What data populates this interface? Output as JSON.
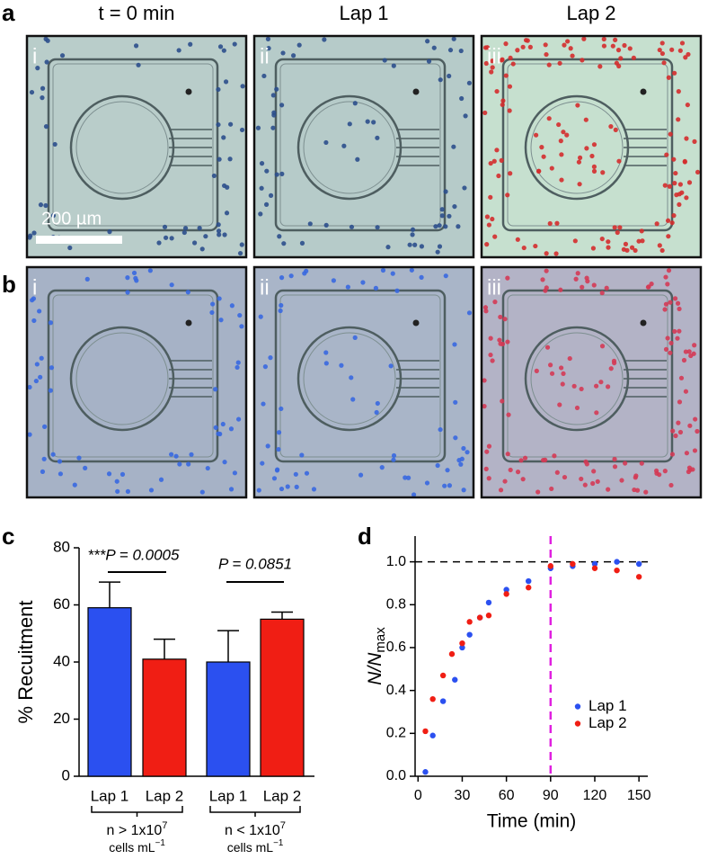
{
  "panel_labels": [
    "a",
    "b",
    "c",
    "d"
  ],
  "columns": [
    "t = 0 min",
    "Lap 1",
    "Lap 2"
  ],
  "rows": [
    [
      "i",
      "ii",
      "iii"
    ],
    [
      "i",
      "ii",
      "iii"
    ]
  ],
  "scale_bar": "200 µm",
  "chart_data": [
    {
      "type": "bar",
      "ylabel": "% Recuitment",
      "categories": [
        "Lap 1",
        "Lap 2",
        "Lap 1",
        "Lap 2"
      ],
      "values": [
        59,
        41,
        40,
        55
      ],
      "errors": [
        9,
        7,
        11,
        2.5
      ],
      "colors": [
        "#2b50f0",
        "#f01e14",
        "#2b50f0",
        "#f01e14"
      ],
      "ylim": [
        0,
        80
      ],
      "yticks": [
        0,
        20,
        40,
        60,
        80
      ],
      "annotations": [
        "***P = 0.0005",
        "P = 0.0851"
      ],
      "groups": [
        {
          "line1": {
            "main": "n > 1x10",
            "sup": "7"
          },
          "line2": {
            "main": "cells mL",
            "sup": "−1"
          }
        },
        {
          "line1": {
            "main": "n < 1x10",
            "sup": "7"
          },
          "line2": {
            "main": "cells mL",
            "sup": "−1"
          }
        }
      ]
    },
    {
      "type": "scatter",
      "xlabel": "Time (min)",
      "ylabel": {
        "main": "N/N",
        "sub": "max"
      },
      "xlim": [
        -2,
        156
      ],
      "xticks": [
        0,
        30,
        60,
        90,
        120,
        150
      ],
      "ylim": [
        0,
        1.12
      ],
      "yticks": [
        {
          "value": 0,
          "label": "0.0"
        },
        0.2,
        0.4,
        0.6,
        0.8,
        {
          "value": 1,
          "label": "1.0"
        }
      ],
      "hline": {
        "value": 1,
        "color": "#000000"
      },
      "vline": {
        "value": 90,
        "color": "#e020e0"
      },
      "legend": "center right",
      "series": [
        {
          "name": "Lap 1",
          "color": "#2b50f0",
          "x": [
            5,
            10,
            17,
            25,
            30,
            35,
            42,
            48,
            60,
            75,
            90,
            105,
            120,
            135,
            150
          ],
          "values": [
            0.02,
            0.19,
            0.35,
            0.45,
            0.6,
            0.66,
            0.74,
            0.81,
            0.87,
            0.91,
            0.97,
            0.98,
            0.99,
            1.0,
            0.99
          ]
        },
        {
          "name": "Lap 2",
          "color": "#f01e14",
          "x": [
            5,
            10,
            17,
            23,
            30,
            35,
            42,
            48,
            60,
            75,
            90,
            105,
            120,
            135,
            150
          ],
          "values": [
            0.21,
            0.36,
            0.47,
            0.57,
            0.62,
            0.72,
            0.74,
            0.75,
            0.85,
            0.88,
            0.98,
            0.99,
            0.97,
            0.96,
            0.93
          ]
        }
      ]
    }
  ]
}
